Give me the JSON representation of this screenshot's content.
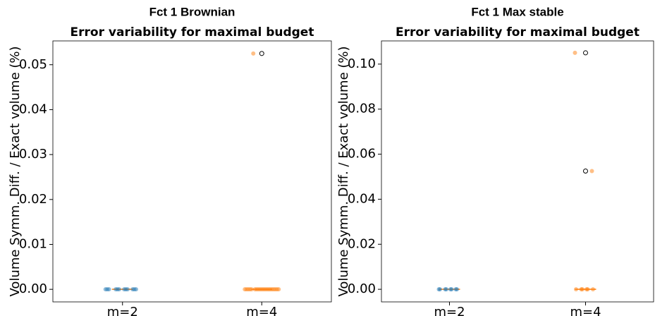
{
  "chart_data": [
    {
      "type": "box",
      "title": "Fct 1 Brownian",
      "subtitle": "Error variability for maximal budget",
      "ylabel": "Volume Symm. Diff. / Exact volume (%)",
      "categories": [
        "m=2",
        "m=4"
      ],
      "colors": [
        "#1f77b4",
        "#ff7f0e"
      ],
      "median_color": "#ff7f0e",
      "points": [
        [
          0,
          0,
          0,
          0,
          0,
          0,
          0,
          0,
          0,
          0,
          0,
          0
        ],
        [
          0,
          0,
          0,
          0,
          0,
          0,
          0,
          0,
          0,
          0,
          0,
          0,
          0,
          0,
          0,
          0,
          0,
          0,
          0,
          0,
          0.0525
        ]
      ],
      "boxes": [
        {
          "whislo": 0,
          "q1": 0,
          "median": 0,
          "q3": 0,
          "whishi": 0,
          "fliers": []
        },
        {
          "whislo": 0,
          "q1": 0,
          "median": 0,
          "q3": 0,
          "whishi": 0,
          "fliers": [
            0.0525
          ]
        }
      ],
      "ylim": [
        -0.0028,
        0.0553
      ],
      "yticks": [
        {
          "value": 0,
          "label": "0.00"
        },
        {
          "value": 0.01,
          "label": "0.01"
        },
        {
          "value": 0.02,
          "label": "0.02"
        },
        {
          "value": 0.03,
          "label": "0.03"
        },
        {
          "value": 0.04,
          "label": "0.04"
        },
        {
          "value": 0.05,
          "label": "0.05"
        }
      ]
    },
    {
      "type": "box",
      "title": "Fct 1 Max stable",
      "subtitle": "Error variability for maximal budget",
      "ylabel": "Volume Symm. Diff. / Exact volume (%)",
      "categories": [
        "m=2",
        "m=4"
      ],
      "colors": [
        "#1f77b4",
        "#ff7f0e"
      ],
      "median_color": "#ff7f0e",
      "points": [
        [
          0,
          0,
          0,
          0,
          0,
          0,
          0,
          0
        ],
        [
          0.105,
          0.0525,
          0,
          0,
          0,
          0,
          0,
          0
        ]
      ],
      "boxes": [
        {
          "whislo": 0,
          "q1": 0,
          "median": 0,
          "q3": 0,
          "whishi": 0,
          "fliers": []
        },
        {
          "whislo": 0,
          "q1": 0,
          "median": 0,
          "q3": 0,
          "whishi": 0,
          "fliers": [
            0.105,
            0.0525
          ]
        }
      ],
      "ylim": [
        -0.0056,
        0.1103
      ],
      "yticks": [
        {
          "value": 0,
          "label": "0.00"
        },
        {
          "value": 0.02,
          "label": "0.02"
        },
        {
          "value": 0.04,
          "label": "0.04"
        },
        {
          "value": 0.06,
          "label": "0.06"
        },
        {
          "value": 0.08,
          "label": "0.08"
        },
        {
          "value": 0.1,
          "label": "0.10"
        }
      ]
    }
  ]
}
